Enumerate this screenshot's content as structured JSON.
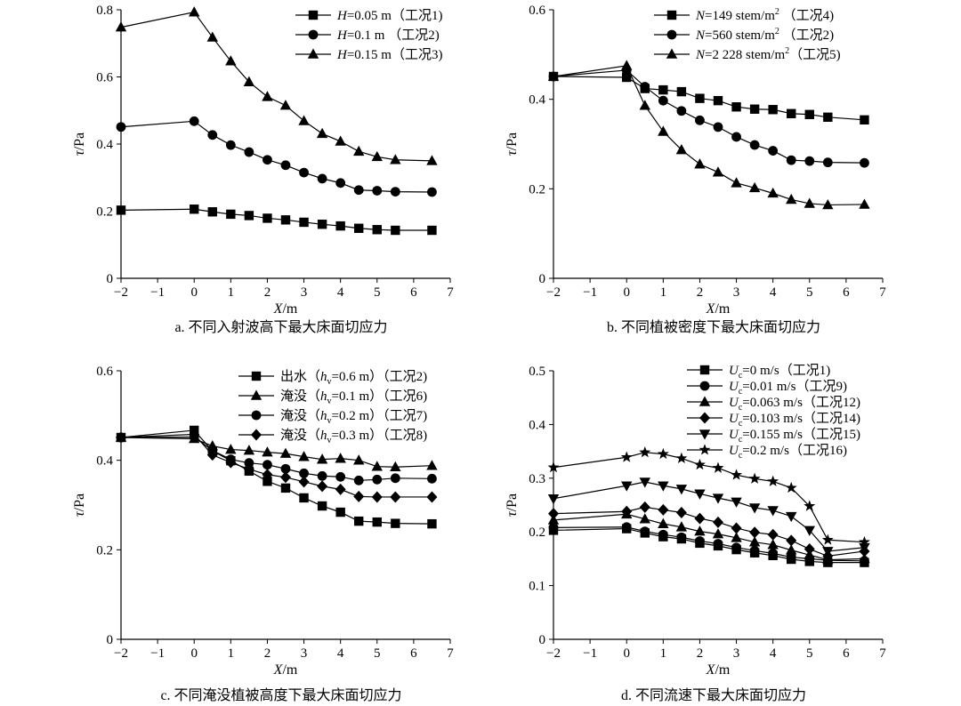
{
  "chart_data": [
    {
      "id": "a",
      "type": "line",
      "caption": "a. 不同入射波高下最大床面切应力",
      "xlabel": "X/m",
      "ylabel": "τ/Pa",
      "xlim": [
        -2,
        7
      ],
      "ylim": [
        0,
        0.8
      ],
      "xticks": [
        -2,
        -1,
        0,
        1,
        2,
        3,
        4,
        5,
        6,
        7
      ],
      "yticks": [
        0,
        0.2,
        0.4,
        0.6,
        0.8
      ],
      "x": [
        -2,
        0,
        0.5,
        1,
        1.5,
        2,
        2.5,
        3,
        3.5,
        4,
        4.5,
        5,
        5.5,
        6.5
      ],
      "series": [
        {
          "name": "H=0.05 m（工况1)",
          "var": "H",
          "rest": "=0.05 m（工况1)",
          "marker": "square",
          "values": [
            0.203,
            0.206,
            0.198,
            0.191,
            0.187,
            0.179,
            0.174,
            0.167,
            0.161,
            0.156,
            0.149,
            0.145,
            0.143,
            0.143
          ]
        },
        {
          "name": "H=0.1 m （工况2)",
          "var": "H",
          "rest": "=0.1 m （工况2)",
          "marker": "circle",
          "values": [
            0.451,
            0.468,
            0.427,
            0.397,
            0.376,
            0.353,
            0.337,
            0.315,
            0.297,
            0.284,
            0.263,
            0.261,
            0.258,
            0.257
          ]
        },
        {
          "name": "H=0.15 m（工况3)",
          "var": "H",
          "rest": "=0.15 m（工况3)",
          "marker": "triangle-up",
          "values": [
            0.748,
            0.793,
            0.718,
            0.647,
            0.585,
            0.541,
            0.515,
            0.469,
            0.431,
            0.408,
            0.378,
            0.362,
            0.353,
            0.35
          ]
        }
      ]
    },
    {
      "id": "b",
      "type": "line",
      "caption": "b. 不同植被密度下最大床面切应力",
      "xlabel": "X/m",
      "ylabel": "τ/Pa",
      "xlim": [
        -2,
        7
      ],
      "ylim": [
        0,
        0.6
      ],
      "xticks": [
        -2,
        -1,
        0,
        1,
        2,
        3,
        4,
        5,
        6,
        7
      ],
      "yticks": [
        0,
        0.2,
        0.4,
        0.6
      ],
      "x": [
        -2,
        0,
        0.5,
        1,
        1.5,
        2,
        2.5,
        3,
        3.5,
        4,
        4.5,
        5,
        5.5,
        6.5
      ],
      "series": [
        {
          "name": "N=149 stem/m2 （工况4)",
          "var": "N",
          "rest": "=149 stem/m",
          "sup": "2",
          "tail": " （工况4)",
          "marker": "square",
          "values": [
            0.451,
            0.449,
            0.424,
            0.421,
            0.417,
            0.402,
            0.397,
            0.383,
            0.378,
            0.377,
            0.368,
            0.366,
            0.36,
            0.354
          ]
        },
        {
          "name": "N=560 stem/m2 （工况2)",
          "var": "N",
          "rest": "=560 stem/m",
          "sup": "2",
          "tail": " （工况2)",
          "marker": "circle",
          "values": [
            0.451,
            0.465,
            0.428,
            0.397,
            0.374,
            0.353,
            0.338,
            0.316,
            0.298,
            0.285,
            0.264,
            0.262,
            0.259,
            0.258
          ]
        },
        {
          "name": "N=2 228 stem/m2 （工况5)",
          "var": "N",
          "rest": "=2 228 stem/m",
          "sup": "2",
          "tail": "（工况5)",
          "marker": "triangle-up",
          "values": [
            0.451,
            0.475,
            0.386,
            0.328,
            0.287,
            0.255,
            0.237,
            0.213,
            0.202,
            0.19,
            0.176,
            0.167,
            0.164,
            0.165
          ]
        }
      ]
    },
    {
      "id": "c",
      "type": "line",
      "caption": "c. 不同淹没植被高度下最大床面切应力",
      "xlabel": "X/m",
      "ylabel": "τ/Pa",
      "xlim": [
        -2,
        7
      ],
      "ylim": [
        0,
        0.6
      ],
      "xticks": [
        -2,
        -1,
        0,
        1,
        2,
        3,
        4,
        5,
        6,
        7
      ],
      "yticks": [
        0,
        0.2,
        0.4,
        0.6
      ],
      "x": [
        -2,
        0,
        0.5,
        1,
        1.5,
        2,
        2.5,
        3,
        3.5,
        4,
        4.5,
        5,
        5.5,
        6.5
      ],
      "series": [
        {
          "name": "出水（hv=0.6 m）（工况2)",
          "pre": "出水（",
          "var": "h",
          "sub": "v",
          "rest": "=0.6 m）",
          "tail": "（工况2)",
          "marker": "square",
          "values": [
            0.451,
            0.467,
            0.421,
            0.399,
            0.376,
            0.353,
            0.338,
            0.316,
            0.298,
            0.284,
            0.264,
            0.262,
            0.259,
            0.258
          ]
        },
        {
          "name": "淹没（hv=0.1 m）（工况6)",
          "pre": "淹没（",
          "var": "h",
          "sub": "v",
          "rest": "=0.1 m）",
          "tail": "（工况6)",
          "marker": "triangle-up",
          "values": [
            0.451,
            0.448,
            0.432,
            0.424,
            0.422,
            0.418,
            0.415,
            0.408,
            0.402,
            0.404,
            0.4,
            0.386,
            0.385,
            0.388
          ]
        },
        {
          "name": "淹没（hv=0.2 m）（工况7)",
          "pre": "淹没（",
          "var": "h",
          "sub": "v",
          "rest": "=0.2 m）",
          "tail": "（工况7)",
          "marker": "circle",
          "values": [
            0.451,
            0.452,
            0.422,
            0.402,
            0.394,
            0.39,
            0.381,
            0.371,
            0.365,
            0.363,
            0.355,
            0.357,
            0.36,
            0.359
          ]
        },
        {
          "name": "淹没（hv=0.3 m）（工况8)",
          "pre": "淹没（",
          "var": "h",
          "sub": "v",
          "rest": "=0.3 m）",
          "tail": "（工况8)",
          "marker": "diamond",
          "values": [
            0.451,
            0.458,
            0.412,
            0.395,
            0.38,
            0.368,
            0.362,
            0.352,
            0.342,
            0.335,
            0.319,
            0.318,
            0.318,
            0.318
          ]
        }
      ]
    },
    {
      "id": "d",
      "type": "line",
      "caption": "d. 不同流速下最大床面切应力",
      "xlabel": "X/m",
      "ylabel": "τ/Pa",
      "xlim": [
        -2,
        7
      ],
      "ylim": [
        0,
        0.5
      ],
      "xticks": [
        -2,
        -1,
        0,
        1,
        2,
        3,
        4,
        5,
        6,
        7
      ],
      "yticks": [
        0,
        0.1,
        0.2,
        0.3,
        0.4,
        0.5
      ],
      "x": [
        -2,
        0,
        0.5,
        1,
        1.5,
        2,
        2.5,
        3,
        3.5,
        4,
        4.5,
        5,
        5.5,
        6.5
      ],
      "series": [
        {
          "name": "Uc=0 m/s （工况1)",
          "var": "U",
          "sub": "c",
          "rest": "=0 m/s",
          "tail": "（工况1)",
          "marker": "square",
          "values": [
            0.203,
            0.206,
            0.198,
            0.191,
            0.187,
            0.179,
            0.174,
            0.167,
            0.161,
            0.156,
            0.149,
            0.145,
            0.143,
            0.143
          ]
        },
        {
          "name": "Uc=0.01 m/s （工况9)",
          "var": "U",
          "sub": "c",
          "rest": "=0.01 m/s",
          "tail": "（工况9)",
          "marker": "circle",
          "values": [
            0.208,
            0.209,
            0.201,
            0.195,
            0.19,
            0.183,
            0.178,
            0.171,
            0.165,
            0.16,
            0.153,
            0.15,
            0.147,
            0.146
          ]
        },
        {
          "name": "Uc=0.063 m/s （工况12)",
          "var": "U",
          "sub": "c",
          "rest": "=0.063 m/s",
          "tail": "（工况12)",
          "marker": "triangle-up",
          "values": [
            0.222,
            0.233,
            0.224,
            0.215,
            0.209,
            0.201,
            0.196,
            0.189,
            0.181,
            0.176,
            0.166,
            0.157,
            0.148,
            0.15
          ]
        },
        {
          "name": "Uc=0.103 m/s （工况14)",
          "var": "U",
          "sub": "c",
          "rest": "=0.103 m/s",
          "tail": "（工况14)",
          "marker": "diamond",
          "values": [
            0.234,
            0.238,
            0.246,
            0.241,
            0.236,
            0.225,
            0.218,
            0.207,
            0.199,
            0.195,
            0.184,
            0.168,
            0.155,
            0.164
          ]
        },
        {
          "name": "Uc=0.155 m/s （工况15)",
          "var": "U",
          "sub": "c",
          "rest": "=0.155 m/s",
          "tail": "（工况15)",
          "marker": "triangle-down",
          "values": [
            0.262,
            0.286,
            0.293,
            0.286,
            0.28,
            0.271,
            0.263,
            0.256,
            0.245,
            0.24,
            0.229,
            0.203,
            0.164,
            0.171
          ]
        },
        {
          "name": "Uc=0.2 m/s （工况16)",
          "var": "U",
          "sub": "c",
          "rest": "=0.2 m/s",
          "tail": "（工况16)",
          "marker": "star",
          "values": [
            0.32,
            0.339,
            0.348,
            0.345,
            0.337,
            0.325,
            0.319,
            0.306,
            0.299,
            0.294,
            0.282,
            0.248,
            0.185,
            0.181
          ]
        }
      ]
    }
  ]
}
